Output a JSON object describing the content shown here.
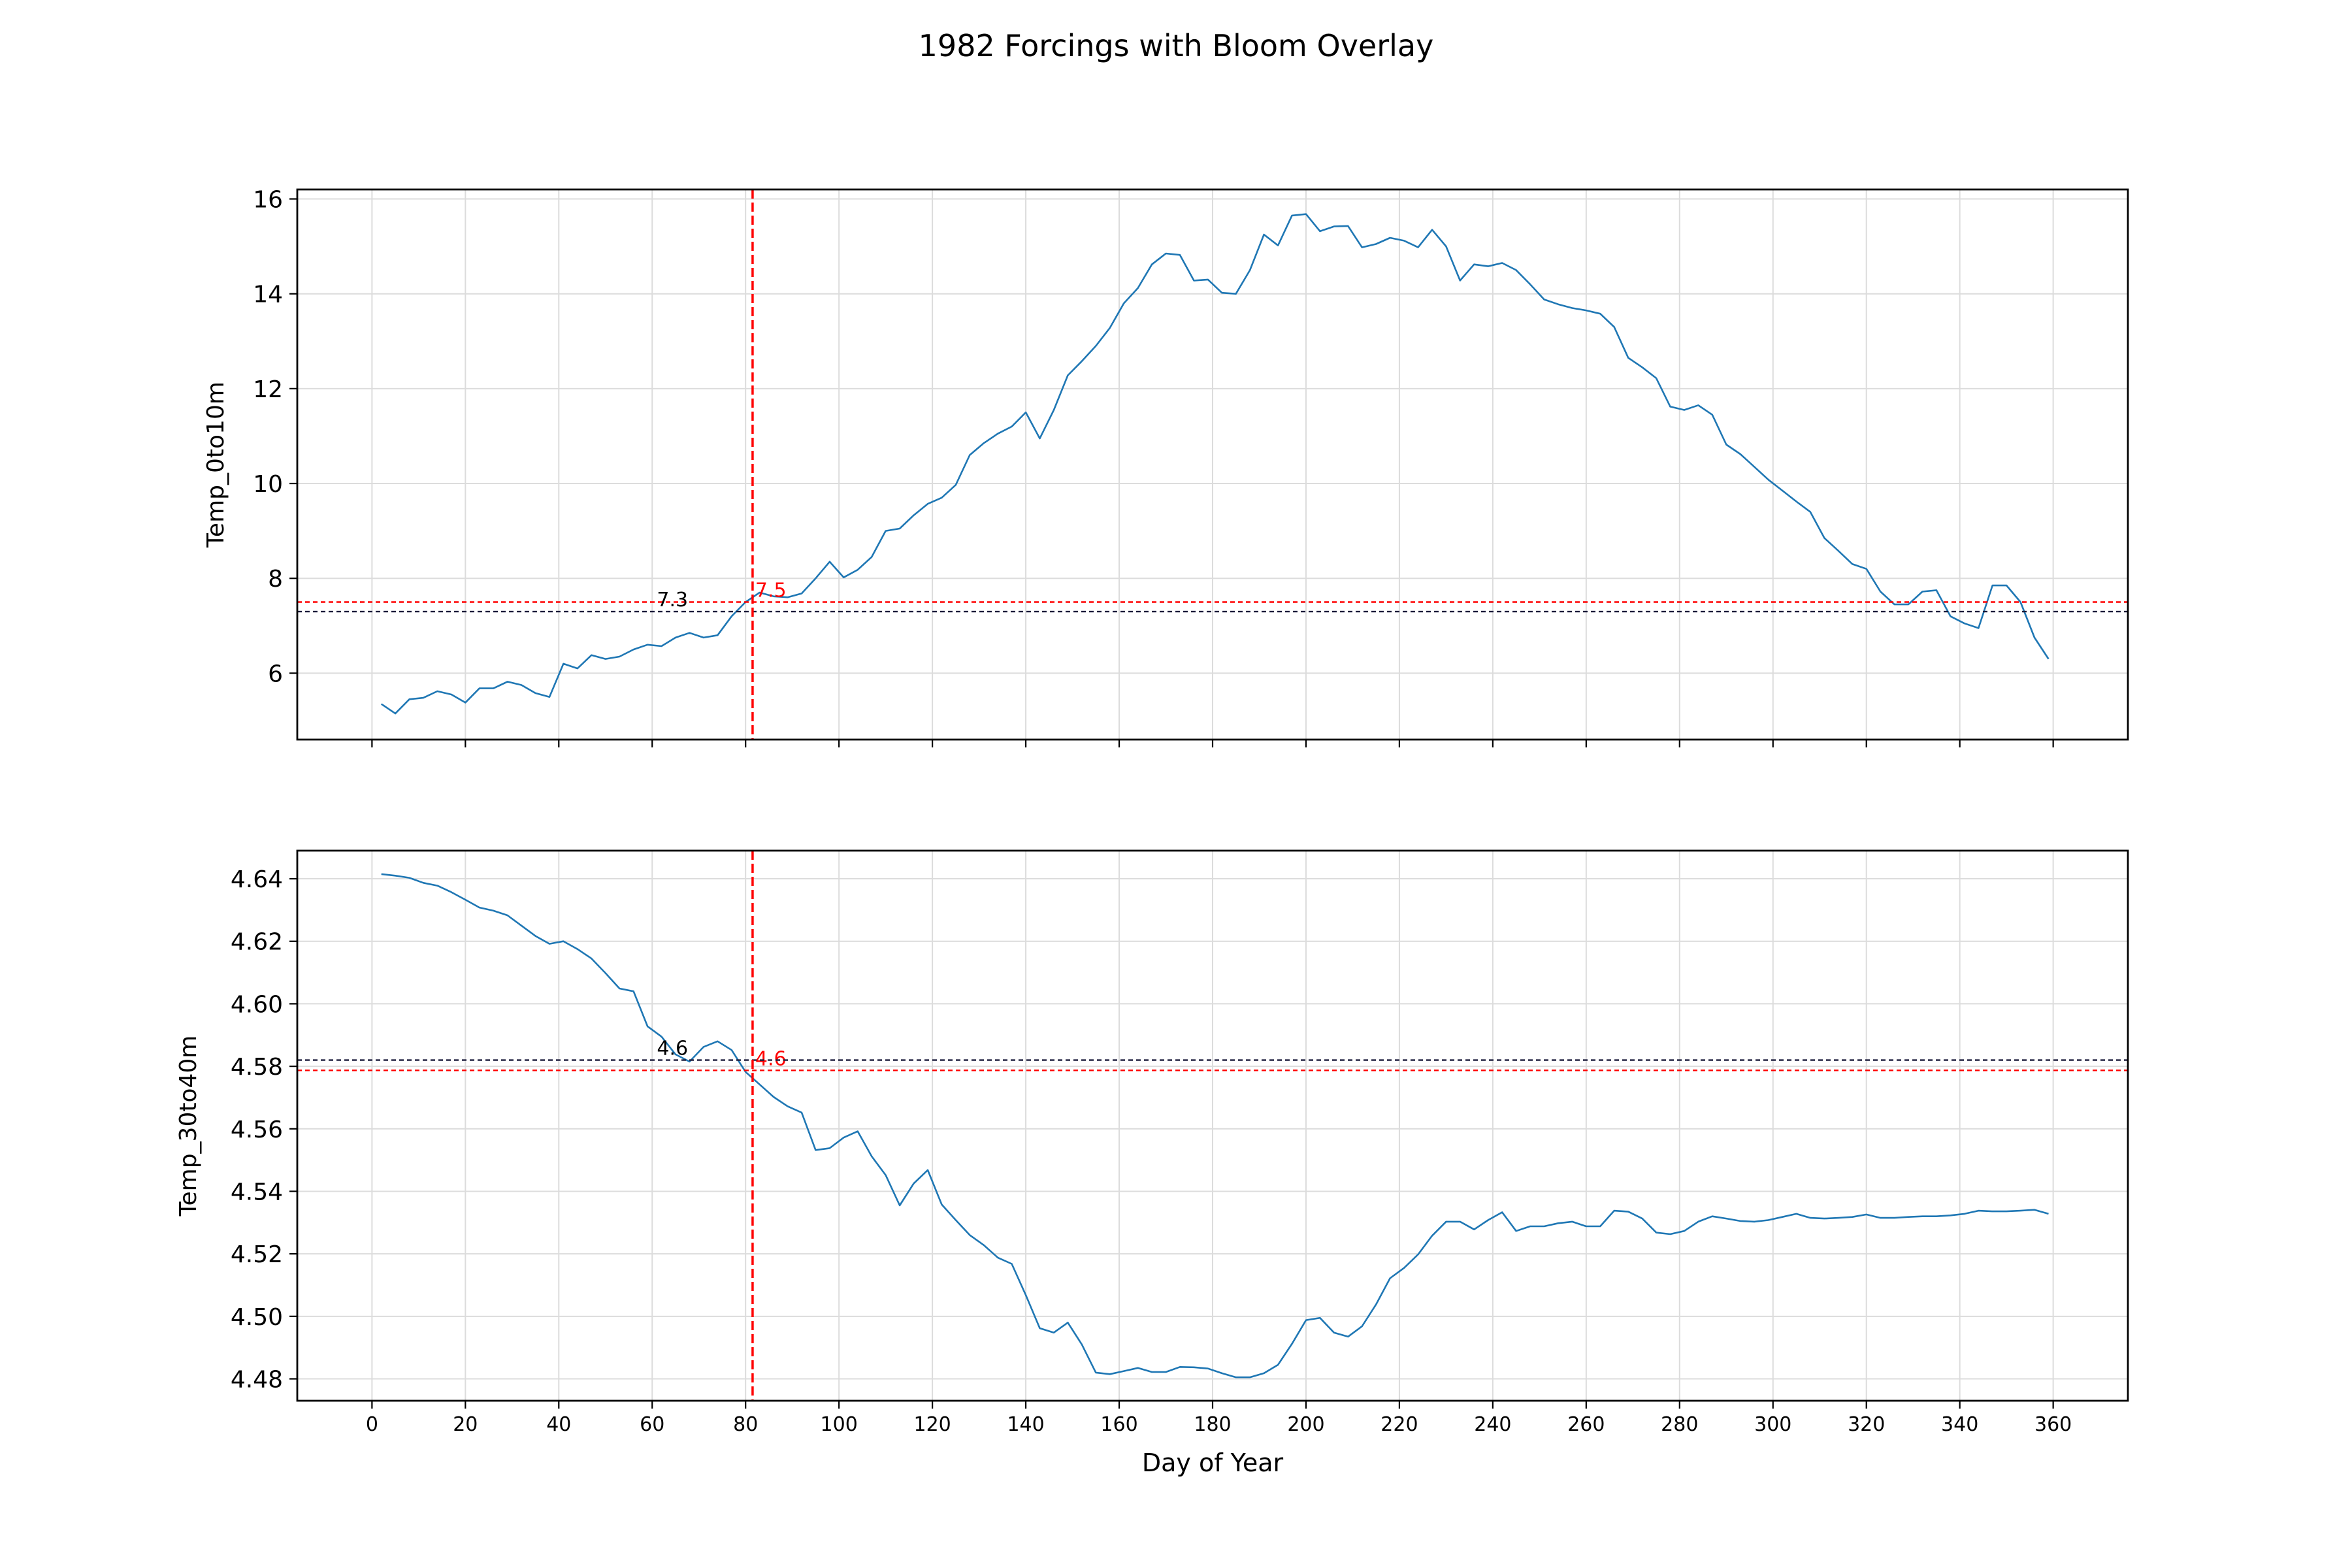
{
  "figure": {
    "title": "1982 Forcings with Bloom Overlay"
  },
  "chart_data": [
    {
      "type": "line",
      "title": "",
      "xlabel": "",
      "ylabel": "Temp_0to10m",
      "xlim": [
        -16,
        376
      ],
      "ylim": [
        4.6,
        16.2
      ],
      "xticks": [
        0,
        20,
        40,
        60,
        80,
        100,
        120,
        140,
        160,
        180,
        200,
        220,
        240,
        260,
        280,
        300,
        320,
        340,
        360
      ],
      "show_xtick_labels": false,
      "yticks": [
        6,
        8,
        10,
        12,
        14,
        16
      ],
      "ytick_labels": [
        "6",
        "8",
        "10",
        "12",
        "14",
        "16"
      ],
      "grid": true,
      "series": [
        {
          "color": "#1f77b4",
          "x": [
            2,
            5,
            8,
            11,
            14,
            17,
            20,
            23,
            26,
            29,
            32,
            35,
            38,
            41,
            44,
            47,
            50,
            53,
            56,
            59,
            62,
            65,
            68,
            71,
            74,
            77,
            80,
            83,
            86,
            89,
            92,
            95,
            98,
            101,
            104,
            107,
            110,
            113,
            116,
            119,
            122,
            125,
            128,
            131,
            134,
            137,
            140,
            143,
            146,
            149,
            152,
            155,
            158,
            161,
            164,
            167,
            170,
            173,
            176,
            179,
            182,
            185,
            188,
            191,
            194,
            197,
            200,
            203,
            206,
            209,
            212,
            215,
            218,
            221,
            224,
            227,
            230,
            233,
            236,
            239,
            242,
            245,
            248,
            251,
            254,
            257,
            260,
            263,
            266,
            269,
            272,
            275,
            278,
            281,
            284,
            287,
            290,
            293,
            296,
            299,
            302,
            305,
            308,
            311,
            314,
            317,
            320,
            323,
            326,
            329,
            332,
            335,
            338,
            341,
            344,
            347,
            350,
            353,
            356,
            359
          ],
          "y": [
            5.35,
            5.15,
            5.45,
            5.48,
            5.62,
            5.55,
            5.38,
            5.68,
            5.68,
            5.82,
            5.75,
            5.58,
            5.5,
            6.2,
            6.1,
            6.38,
            6.3,
            6.35,
            6.5,
            6.6,
            6.57,
            6.75,
            6.85,
            6.75,
            6.8,
            7.2,
            7.5,
            7.7,
            7.62,
            7.6,
            7.68,
            8,
            8.35,
            8.02,
            8.18,
            8.45,
            9.0,
            9.05,
            9.33,
            9.57,
            9.7,
            9.97,
            10.6,
            10.85,
            11.05,
            11.2,
            11.5,
            10.95,
            11.55,
            12.28,
            12.58,
            12.9,
            13.28,
            13.8,
            14.12,
            14.62,
            14.85,
            14.82,
            14.28,
            14.3,
            14.02,
            14.0,
            14.5,
            15.25,
            15.02,
            15.65,
            15.68,
            15.32,
            15.42,
            15.43,
            14.98,
            15.05,
            15.18,
            15.12,
            14.98,
            15.35,
            15.0,
            14.28,
            14.62,
            14.58,
            14.65,
            14.5,
            14.2,
            13.88,
            13.78,
            13.7,
            13.65,
            13.58,
            13.3,
            12.65,
            12.45,
            12.22,
            11.62,
            11.55,
            11.65,
            11.45,
            10.82,
            10.62,
            10.35,
            10.08,
            9.85,
            9.62,
            9.4,
            8.85,
            8.58,
            8.3,
            8.2,
            7.72,
            7.45,
            7.45,
            7.72,
            7.75,
            7.2,
            7.05,
            6.95,
            7.85,
            7.85,
            7.5,
            6.75,
            6.3
          ]
        }
      ],
      "vertical_line": {
        "x": 81.5,
        "color": "#ff0000",
        "style": "dashed"
      },
      "horizontal_lines": [
        {
          "y": 7.5,
          "color": "#ff0000",
          "style": "dashed",
          "label": "7.5"
        },
        {
          "y": 7.3,
          "color": "#1a1a3a",
          "style": "dashed",
          "label": "7.3"
        }
      ]
    },
    {
      "type": "line",
      "title": "",
      "xlabel": "Day of Year",
      "ylabel": "Temp_30to40m",
      "xlim": [
        -16,
        376
      ],
      "ylim": [
        4.473,
        4.649
      ],
      "xticks": [
        0,
        20,
        40,
        60,
        80,
        100,
        120,
        140,
        160,
        180,
        200,
        220,
        240,
        260,
        280,
        300,
        320,
        340,
        360
      ],
      "xtick_labels": [
        "0",
        "20",
        "40",
        "60",
        "80",
        "100",
        "120",
        "140",
        "160",
        "180",
        "200",
        "220",
        "240",
        "260",
        "280",
        "300",
        "320",
        "340",
        "360"
      ],
      "show_xtick_labels": true,
      "yticks": [
        4.48,
        4.5,
        4.52,
        4.54,
        4.56,
        4.58,
        4.6,
        4.62,
        4.64
      ],
      "ytick_labels": [
        "4.48",
        "4.50",
        "4.52",
        "4.54",
        "4.56",
        "4.58",
        "4.60",
        "4.62",
        "4.64"
      ],
      "grid": true,
      "series": [
        {
          "color": "#1f77b4",
          "x": [
            2,
            5,
            8,
            11,
            14,
            17,
            20,
            23,
            26,
            29,
            32,
            35,
            38,
            41,
            44,
            47,
            50,
            53,
            56,
            59,
            62,
            65,
            68,
            71,
            74,
            77,
            80,
            83,
            86,
            89,
            92,
            95,
            98,
            101,
            104,
            107,
            110,
            113,
            116,
            119,
            122,
            125,
            128,
            131,
            134,
            137,
            140,
            143,
            146,
            149,
            152,
            155,
            158,
            161,
            164,
            167,
            170,
            173,
            176,
            179,
            182,
            185,
            188,
            191,
            194,
            197,
            200,
            203,
            206,
            209,
            212,
            215,
            218,
            221,
            224,
            227,
            230,
            233,
            236,
            239,
            242,
            245,
            248,
            251,
            254,
            257,
            260,
            263,
            266,
            269,
            272,
            275,
            278,
            281,
            284,
            287,
            290,
            293,
            296,
            299,
            302,
            305,
            308,
            311,
            314,
            317,
            320,
            323,
            326,
            329,
            332,
            335,
            338,
            341,
            344,
            347,
            350,
            353,
            356,
            359
          ],
          "y": [
            4.6415,
            4.641,
            4.6403,
            4.6387,
            4.6378,
            4.6357,
            4.6333,
            4.6308,
            4.6298,
            4.6283,
            4.625,
            4.6217,
            4.6192,
            4.62,
            4.6175,
            4.6145,
            4.6098,
            4.6049,
            4.604,
            4.5928,
            4.5895,
            4.5838,
            4.5815,
            4.5862,
            4.588,
            4.5852,
            4.5782,
            4.5742,
            4.5702,
            4.5672,
            4.5652,
            4.5532,
            4.5538,
            4.5572,
            4.5592,
            4.5512,
            4.5452,
            4.5355,
            4.5425,
            4.5468,
            4.5358,
            4.5308,
            4.526,
            4.5228,
            4.5188,
            4.5168,
            4.5068,
            4.4962,
            4.4948,
            4.498,
            4.491,
            4.482,
            4.4815,
            4.4825,
            4.4835,
            4.4822,
            4.4822,
            4.4838,
            4.4837,
            4.4833,
            4.4818,
            4.4805,
            4.4805,
            4.4818,
            4.4845,
            4.4912,
            4.4988,
            4.4995,
            4.4948,
            4.4935,
            4.4968,
            4.5038,
            4.5122,
            4.5155,
            4.5198,
            4.5258,
            4.5303,
            4.5303,
            4.5278,
            4.5308,
            4.5333,
            4.5273,
            4.5288,
            4.5288,
            4.5298,
            4.5303,
            4.5288,
            4.5288,
            4.5338,
            4.5335,
            4.5313,
            4.5268,
            4.5263,
            4.5273,
            4.5303,
            4.532,
            4.5313,
            4.5305,
            4.5303,
            4.5308,
            4.5318,
            4.5328,
            4.5315,
            4.5313,
            4.5315,
            4.5318,
            4.5326,
            4.5315,
            4.5315,
            4.5318,
            4.532,
            4.532,
            4.5323,
            4.5328,
            4.5338,
            4.5336,
            4.5336,
            4.5338,
            4.5341,
            4.5328
          ]
        }
      ],
      "vertical_line": {
        "x": 81.5,
        "color": "#ff0000",
        "style": "dashed"
      },
      "horizontal_lines": [
        {
          "y": 4.5787,
          "color": "#ff0000",
          "style": "dashed",
          "label": "4.6"
        },
        {
          "y": 4.582,
          "color": "#1a1a3a",
          "style": "dashed",
          "label": "4.6"
        }
      ]
    }
  ]
}
